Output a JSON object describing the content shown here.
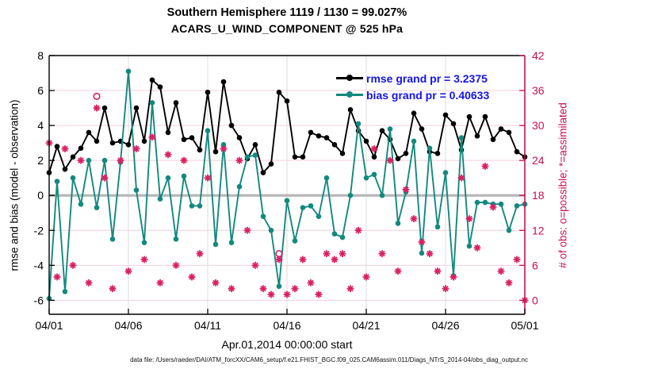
{
  "title": {
    "line1": "Southern Hemisphere 1119 / 1130 = 99.027%",
    "line2": "ACARS_U_WIND_COMPONENT @ 525 hPa"
  },
  "legend": {
    "items": [
      {
        "label": "rmse grand pr = 3.2375",
        "color": "#000000"
      },
      {
        "label": "bias grand pr = 0.40633",
        "color": "#12897e"
      }
    ],
    "text_color": "#1414ee"
  },
  "footer": "data file: /Users/raeder/DAI/ATM_forcXX/CAM6_setup/f.e21.FHIST_BGC.f09_025.CAM6assim.011/Diags_NTrS_2014-04/obs_diag_output.nc",
  "colors": {
    "rmse": "#000000",
    "bias": "#12897e",
    "obs": "#da2162",
    "grid_pink": "#f5cfdc",
    "grid_gray": "#dcdcdc",
    "zero_line": "#b8b8b8",
    "axis": "#000000",
    "right_axis": "#c8104e"
  },
  "chart_data": {
    "type": "line",
    "title": "Southern Hemisphere 1119 / 1130 = 99.027%  |  ACARS_U_WIND_COMPONENT @ 525 hPa",
    "xlabel": "Apr.01,2014 00:00:00 start",
    "ylabel_left": "rmse and bias (model - observation)",
    "ylabel_right": "# of obs: o=possible; *=assimilated",
    "x_ticks": [
      "04/01",
      "04/06",
      "04/11",
      "04/16",
      "04/21",
      "04/26",
      "05/01"
    ],
    "x_tick_days": [
      0,
      5,
      10,
      15,
      20,
      25,
      30
    ],
    "x_range_days": [
      0,
      30
    ],
    "x_start_day": 0,
    "x_step_days": 0.5,
    "ylim_left": [
      -6.8,
      8
    ],
    "yticks_left": [
      -6,
      -4,
      -2,
      0,
      2,
      4,
      6,
      8
    ],
    "ylim_right": [
      -2.4,
      42
    ],
    "yticks_right": [
      0,
      6,
      12,
      18,
      24,
      30,
      36,
      42
    ],
    "grid": "horizontal pink at right-axis ticks, vertical gray at date ticks",
    "legend_position": "top-right inside",
    "zero_line": {
      "value": 0,
      "axis": "left"
    },
    "series": [
      {
        "name": "rmse",
        "axis": "left",
        "marker": "dot",
        "line": true,
        "values": [
          1.3,
          2.8,
          1.5,
          2.2,
          2.7,
          3.6,
          3.1,
          5.0,
          3.0,
          3.1,
          2.9,
          5.0,
          3.1,
          6.6,
          6.2,
          3.6,
          5.3,
          3.2,
          3.3,
          2.6,
          5.9,
          2.5,
          6.5,
          4.0,
          3.3,
          2.1,
          2.9,
          1.3,
          1.8,
          5.9,
          5.4,
          2.2,
          2.2,
          3.6,
          3.4,
          3.3,
          2.9,
          2.4,
          4.9,
          3.7,
          3.1,
          2.2,
          3.7,
          3.2,
          2.1,
          2.4,
          4.7,
          3.8,
          2.5,
          2.4,
          4.6,
          4.1,
          2.6,
          4.5,
          3.4,
          4.5,
          3.2,
          3.8,
          3.6,
          2.5,
          2.2
        ]
      },
      {
        "name": "bias",
        "axis": "left",
        "marker": "dot",
        "line": true,
        "values": [
          -5.9,
          0.8,
          -5.5,
          1.0,
          -0.5,
          2.0,
          -0.7,
          2.0,
          -2.5,
          1.9,
          7.1,
          0.3,
          -2.7,
          5.3,
          -0.2,
          1.0,
          -2.5,
          1.1,
          -0.6,
          -0.6,
          3.7,
          -2.8,
          2.9,
          -2.7,
          0.5,
          2.2,
          2.3,
          -1.2,
          -2.0,
          -5.2,
          -0.3,
          -2.6,
          -0.7,
          -0.6,
          -1.2,
          1.0,
          -2.2,
          -2.4,
          0.0,
          4.1,
          1.0,
          1.2,
          0.0,
          3.8,
          -1.6,
          0.2,
          3.1,
          -3.3,
          2.7,
          -1.8,
          1.3,
          -4.6,
          3.3,
          -2.9,
          -0.4,
          -0.4,
          -0.5,
          -0.5,
          -2.0,
          -0.6,
          -0.5
        ]
      },
      {
        "name": "possible_obs",
        "axis": "right",
        "marker": "circle",
        "line": false,
        "values": [
          27,
          4,
          26,
          6,
          24,
          3,
          35,
          21,
          2,
          24,
          5,
          26,
          7,
          28,
          3,
          25,
          6,
          24,
          4,
          8,
          21,
          3,
          26,
          2,
          24,
          12,
          6,
          2,
          1,
          8,
          1,
          2,
          7,
          3,
          1,
          8,
          7,
          8,
          2,
          12,
          4,
          26,
          8,
          24,
          5,
          19,
          14,
          10,
          8,
          5,
          2,
          4,
          21,
          14,
          9,
          23,
          16,
          5,
          3,
          7,
          0
        ]
      },
      {
        "name": "assimilated_obs",
        "axis": "right",
        "marker": "asterisk",
        "line": false,
        "values": [
          27,
          4,
          26,
          6,
          24,
          3,
          33,
          21,
          2,
          24,
          5,
          26,
          7,
          28,
          3,
          25,
          6,
          24,
          4,
          8,
          21,
          3,
          26,
          2,
          24,
          12,
          6,
          2,
          1,
          7,
          1,
          2,
          7,
          3,
          1,
          8,
          7,
          8,
          2,
          12,
          4,
          26,
          8,
          24,
          5,
          19,
          14,
          10,
          8,
          5,
          2,
          4,
          21,
          14,
          9,
          23,
          16,
          5,
          3,
          7,
          0
        ]
      }
    ]
  }
}
